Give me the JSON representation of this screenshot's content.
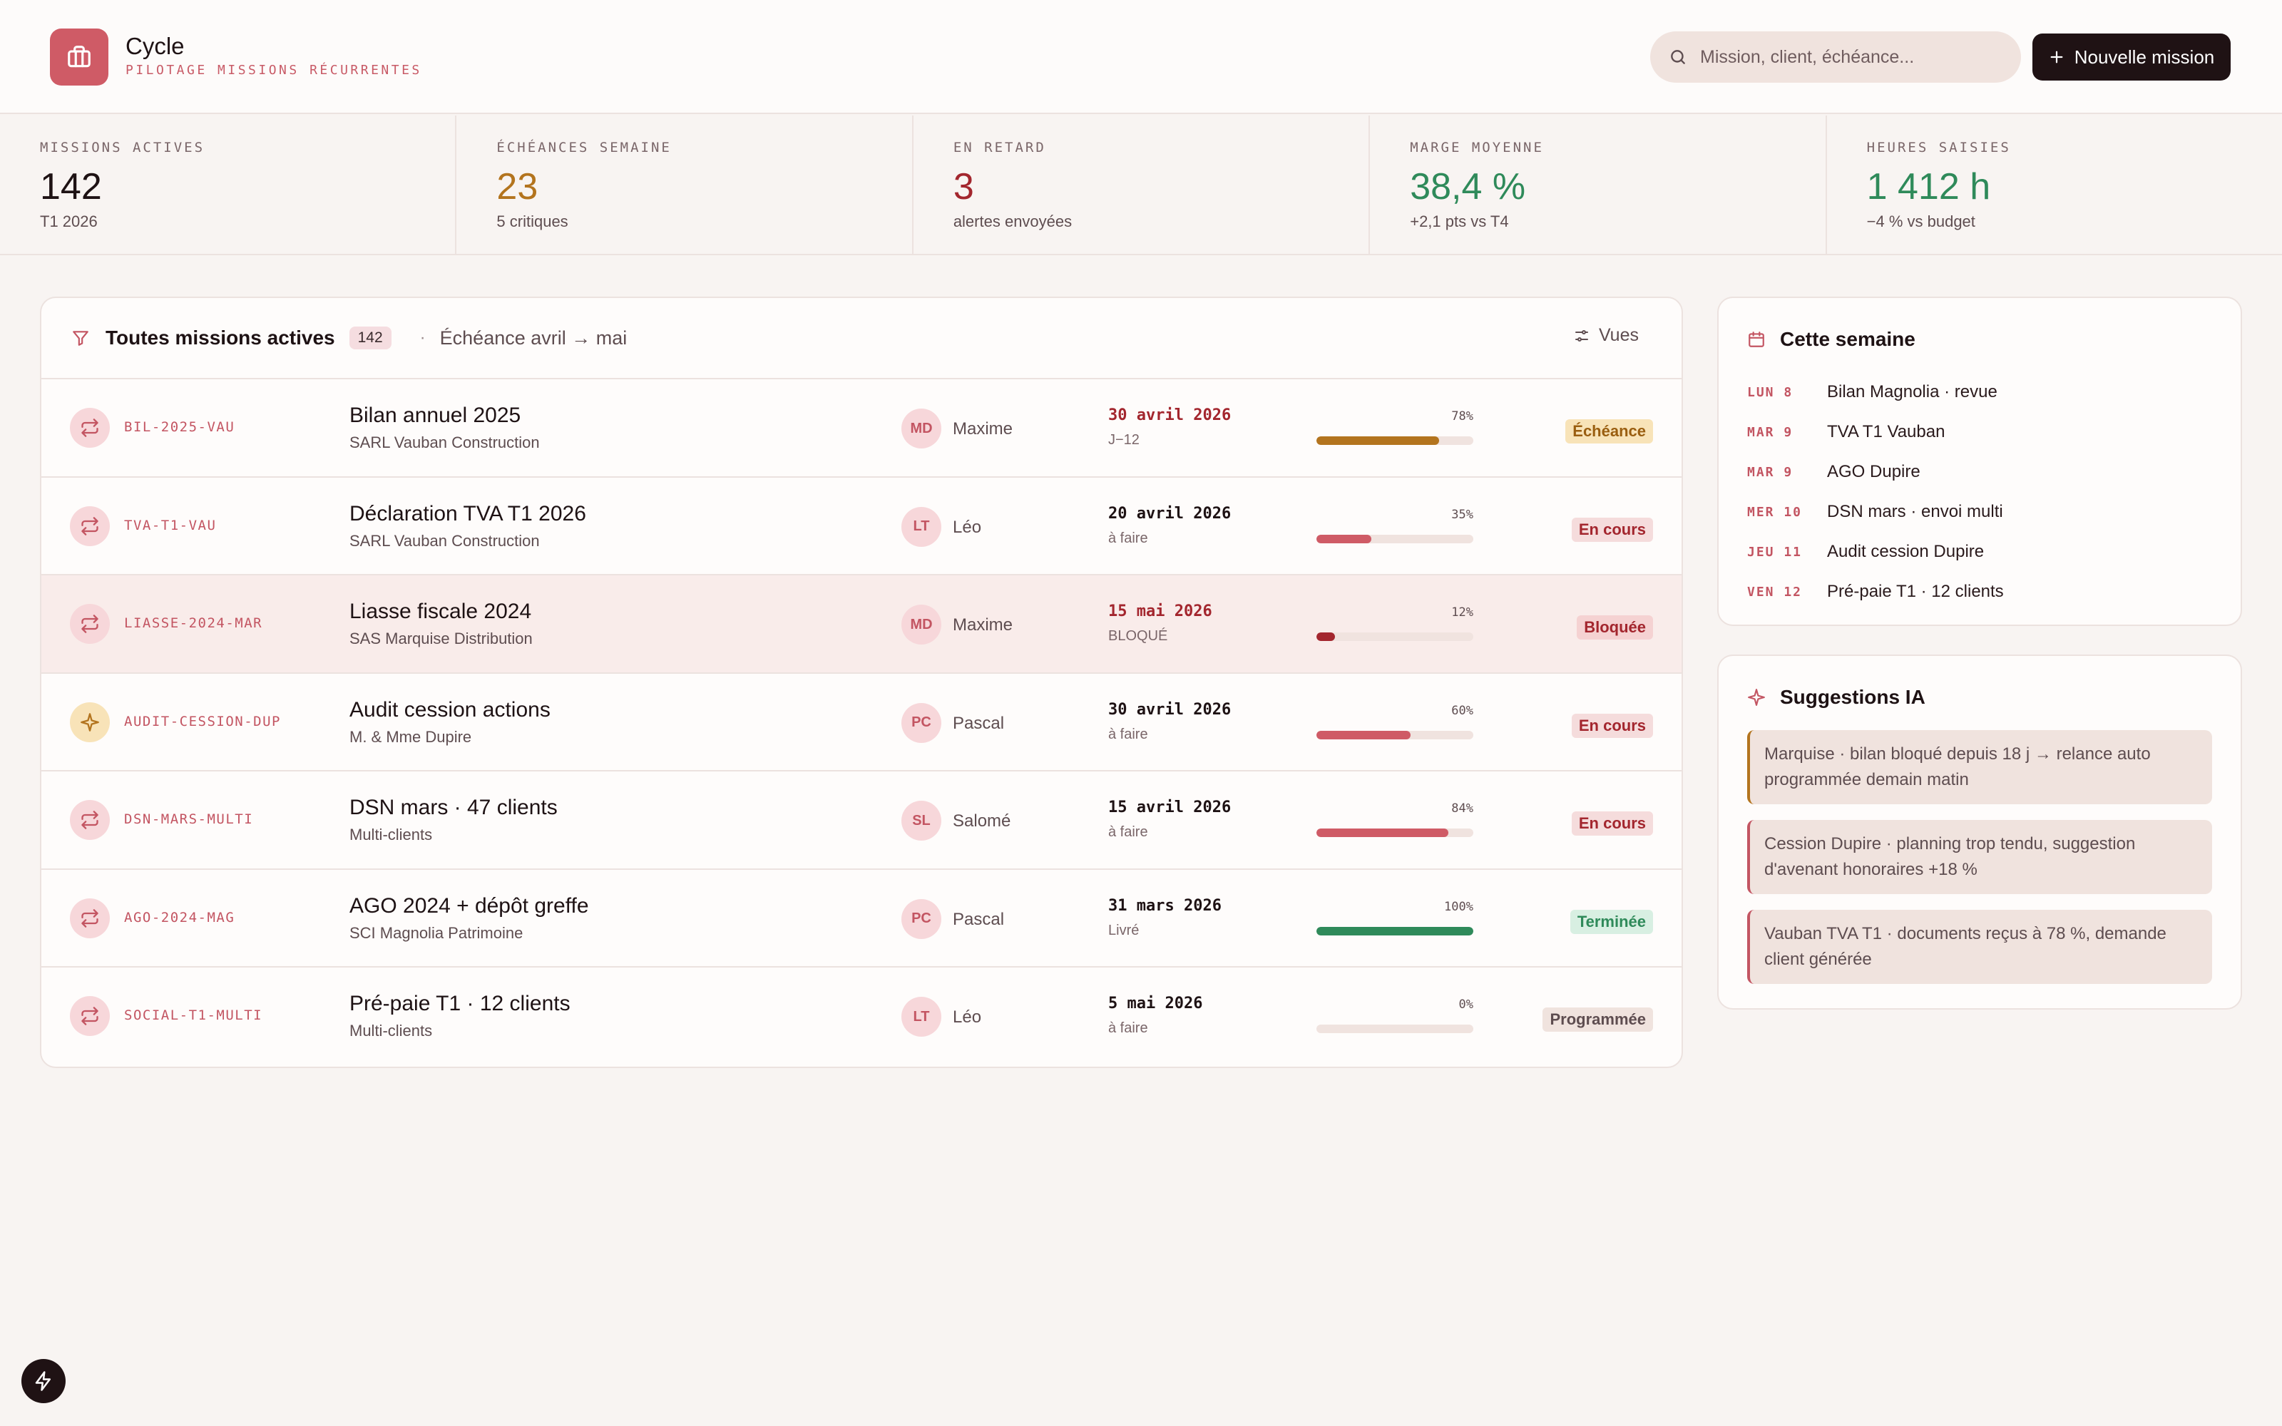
{
  "app": {
    "title": "Cycle",
    "subtitle": "PILOTAGE MISSIONS RÉCURRENTES"
  },
  "search": {
    "placeholder": "Mission, client, échéance..."
  },
  "new_mission": {
    "label": "Nouvelle mission"
  },
  "stats": [
    {
      "label": "MISSIONS ACTIVES",
      "value": "142",
      "note": "T1 2026",
      "color": "#1e1214"
    },
    {
      "label": "ÉCHÉANCES SEMAINE",
      "value": "23",
      "note": "5 critiques",
      "color": "#b3741e"
    },
    {
      "label": "EN RETARD",
      "value": "3",
      "note": "alertes envoyées",
      "color": "#a3262e"
    },
    {
      "label": "MARGE MOYENNE",
      "value": "38,4 %",
      "note": "+2,1 pts vs T4",
      "color": "#2f8a5a"
    },
    {
      "label": "HEURES SAISIES",
      "value": "1 412 h",
      "note": "−4 % vs budget",
      "color": "#2f8a5a"
    }
  ],
  "missions": {
    "filter_title": "Toutes missions actives",
    "count": "142",
    "separator": "·",
    "range": "Échéance avril → mai",
    "views_label": "Vues",
    "rows": [
      {
        "code": "BIL-2025-VAU",
        "title": "Bilan annuel 2025",
        "client": "SARL Vauban Construction",
        "initials": "MD",
        "owner": "Maxime",
        "due": "30 avril 2026",
        "due_sub": "J−12",
        "due_color": "#a3262e",
        "progress": 78,
        "pct_label": "78%",
        "bar_color": "#b3741e",
        "status": "Échéance",
        "status_bg": "#f8e3b8",
        "status_fg": "#9a5e10",
        "icon": "repeat-icon"
      },
      {
        "code": "TVA-T1-VAU",
        "title": "Déclaration TVA T1 2026",
        "client": "SARL Vauban Construction",
        "initials": "LT",
        "owner": "Léo",
        "due": "20 avril 2026",
        "due_sub": "à faire",
        "due_color": "#1e1214",
        "progress": 35,
        "pct_label": "35%",
        "bar_color": "#cf5b66",
        "status": "En cours",
        "status_bg": "#f5dcdc",
        "status_fg": "#a3262e",
        "icon": "repeat-icon"
      },
      {
        "code": "LIASSE-2024-MAR",
        "title": "Liasse fiscale 2024",
        "client": "SAS Marquise Distribution",
        "initials": "MD",
        "owner": "Maxime",
        "due": "15 mai 2026",
        "due_sub": "BLOQUÉ",
        "due_color": "#a3262e",
        "progress": 12,
        "pct_label": "12%",
        "bar_color": "#a3262e",
        "status": "Bloquée",
        "status_bg": "#f5d2d2",
        "status_fg": "#a3262e",
        "icon": "repeat-icon",
        "highlight": true
      },
      {
        "code": "AUDIT-CESSION-DUP",
        "title": "Audit cession actions",
        "client": "M. & Mme Dupire",
        "initials": "PC",
        "owner": "Pascal",
        "due": "30 avril 2026",
        "due_sub": "à faire",
        "due_color": "#1e1214",
        "progress": 60,
        "pct_label": "60%",
        "bar_color": "#cf5b66",
        "status": "En cours",
        "status_bg": "#f5dcdc",
        "status_fg": "#a3262e",
        "icon": "sparkle-icon"
      },
      {
        "code": "DSN-MARS-MULTI",
        "title": "DSN mars · 47 clients",
        "client": "Multi-clients",
        "initials": "SL",
        "owner": "Salomé",
        "due": "15 avril 2026",
        "due_sub": "à faire",
        "due_color": "#1e1214",
        "progress": 84,
        "pct_label": "84%",
        "bar_color": "#cf5b66",
        "status": "En cours",
        "status_bg": "#f5dcdc",
        "status_fg": "#a3262e",
        "icon": "repeat-icon"
      },
      {
        "code": "AGO-2024-MAG",
        "title": "AGO 2024 + dépôt greffe",
        "client": "SCI Magnolia Patrimoine",
        "initials": "PC",
        "owner": "Pascal",
        "due": "31 mars 2026",
        "due_sub": "Livré",
        "due_color": "#1e1214",
        "progress": 100,
        "pct_label": "100%",
        "bar_color": "#2f8a5a",
        "status": "Terminée",
        "status_bg": "#d8efe2",
        "status_fg": "#2f8a5a",
        "icon": "repeat-icon"
      },
      {
        "code": "SOCIAL-T1-MULTI",
        "title": "Pré-paie T1 · 12 clients",
        "client": "Multi-clients",
        "initials": "LT",
        "owner": "Léo",
        "due": "5 mai 2026",
        "due_sub": "à faire",
        "due_color": "#1e1214",
        "progress": 0,
        "pct_label": "0%",
        "bar_color": "#cf5b66",
        "status": "Programmée",
        "status_bg": "#f0e3de",
        "status_fg": "#5e4d50",
        "icon": "repeat-icon"
      }
    ]
  },
  "week": {
    "title": "Cette semaine",
    "items": [
      {
        "day": "LUN 8",
        "text": "Bilan Magnolia · revue"
      },
      {
        "day": "MAR 9",
        "text": "TVA T1 Vauban"
      },
      {
        "day": "MAR 9",
        "text": "AGO Dupire"
      },
      {
        "day": "MER 10",
        "text": "DSN mars · envoi multi"
      },
      {
        "day": "JEU 11",
        "text": "Audit cession Dupire"
      },
      {
        "day": "VEN 12",
        "text": "Pré-paie T1 · 12 clients"
      }
    ]
  },
  "suggestions": {
    "title": "Suggestions IA",
    "items": [
      "Marquise · bilan bloqué depuis 18 j → relance auto programmée demain matin",
      "Cession Dupire · planning trop tendu, suggestion d'avenant honoraires +18 %",
      "Vauban TVA T1 · documents reçus à 78 %, demande client générée"
    ]
  }
}
